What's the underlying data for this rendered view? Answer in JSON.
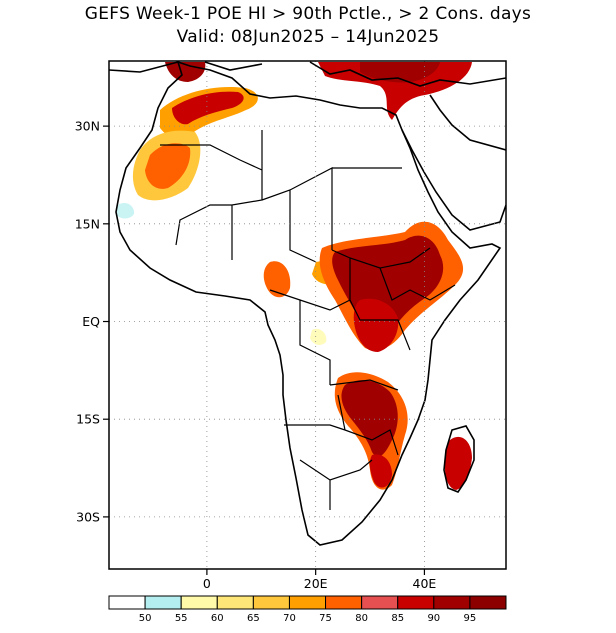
{
  "title": {
    "line1": "GEFS Week-1 POE HI > 90th Pctle., > 2 Cons. days",
    "line2": "Valid: 08Jun2025 – 14Jun2025"
  },
  "axes": {
    "y_ticks": [
      {
        "label": "30N",
        "lat": 30
      },
      {
        "label": "15N",
        "lat": 15
      },
      {
        "label": "EQ",
        "lat": 0
      },
      {
        "label": "15S",
        "lat": -15
      },
      {
        "label": "30S",
        "lat": -30
      }
    ],
    "x_ticks": [
      {
        "label": "0",
        "lon": 0
      },
      {
        "label": "20E",
        "lon": 20
      },
      {
        "label": "40E",
        "lon": 40
      }
    ],
    "lon_range": [
      -18,
      55
    ],
    "lat_range": [
      -38,
      40
    ]
  },
  "colorbar": {
    "labels": [
      "50",
      "55",
      "60",
      "65",
      "70",
      "75",
      "80",
      "85",
      "90",
      "95"
    ],
    "colors": [
      "#ffffff",
      "#b4eef0",
      "#fffaaa",
      "#ffe678",
      "#ffc83c",
      "#ffa000",
      "#ff6000",
      "#e65050",
      "#c80000",
      "#a00000",
      "#8c0000"
    ]
  },
  "regions": [
    {
      "name": "NW Africa / Morocco",
      "level": 90
    },
    {
      "name": "Western Sahara / Mauritania",
      "level": 80
    },
    {
      "name": "Sudan / South Sudan / Ethiopia",
      "level": 95
    },
    {
      "name": "Uganda / Lake Victoria",
      "level": 90
    },
    {
      "name": "Zambia / Malawi / Mozambique",
      "level": 95
    },
    {
      "name": "Madagascar",
      "level": 90
    },
    {
      "name": "Eastern Mediterranean",
      "level": 90
    }
  ]
}
